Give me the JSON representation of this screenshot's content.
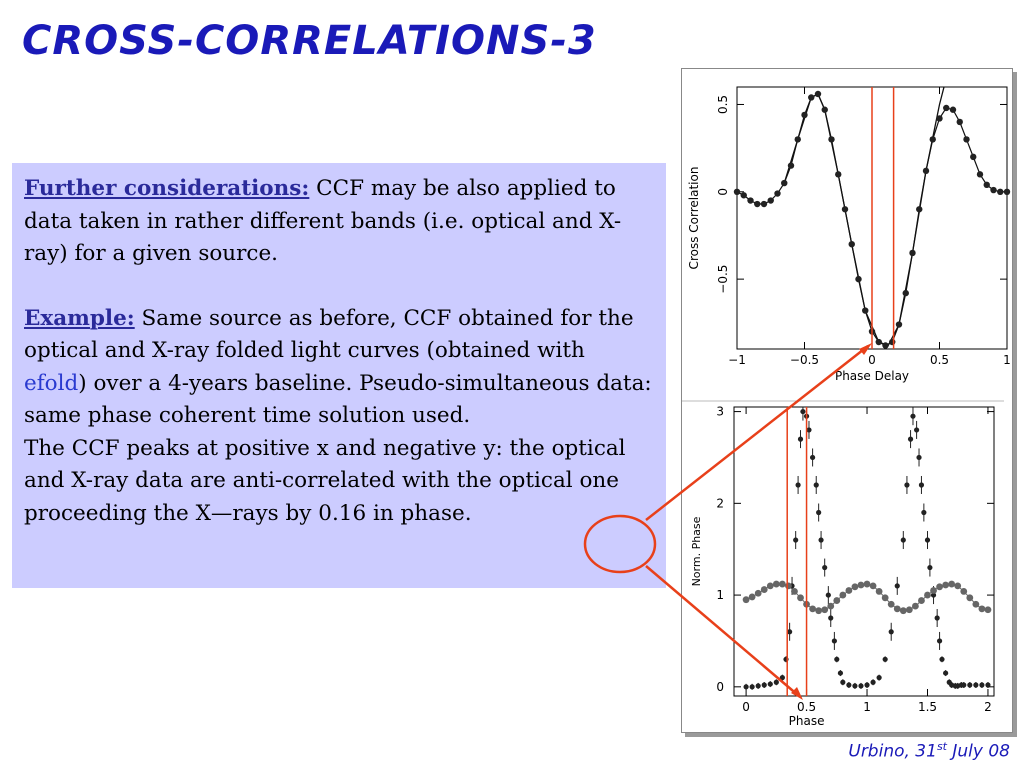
{
  "slide": {
    "title": "CROSS-CORRELATIONS-3",
    "footer": {
      "place": "Urbino, 31",
      "sup": "st",
      "date": " July 08"
    }
  },
  "textbox": {
    "p1_heading": "Further considerations:",
    "p1_text": " CCF may be also applied to data taken in rather different bands (i.e. optical and X-ray) for a given source.",
    "p2_heading": "Example:",
    "p2_text_a": " Same source as before, CCF obtained for the optical and X-ray folded light curves (obtained with ",
    "p2_keyword": "efold",
    "p2_text_b": ") over a 4-years baseline. Pseudo-simultaneous data: same phase coherent time solution used.",
    "p3_text": "The CCF peaks at positive x and negative y: the optical and X-ray data are anti-correlated with the optical one proceeding  the X—rays by 0.16 in phase."
  },
  "colors": {
    "title": "#1a1ab8",
    "box_bg": "#ccccff",
    "accent_red": "#e8401a",
    "marker": "#222222",
    "marker_grey": "#666666"
  },
  "chart_data": [
    {
      "type": "line",
      "xlabel": "Phase Delay",
      "ylabel": "Cross Correlation",
      "xlim": [
        -1,
        1
      ],
      "ylim": [
        -0.9,
        0.6
      ],
      "xticks": [
        "−1",
        "−0.5",
        "0",
        "0.5",
        "1"
      ],
      "yticks": [
        "−0.5",
        "0",
        "0.5"
      ],
      "markers": {
        "x": [
          -1.0,
          -0.95,
          -0.9,
          -0.85,
          -0.8,
          -0.75,
          -0.7,
          -0.65,
          -0.6,
          -0.55,
          -0.5,
          -0.45,
          -0.4,
          -0.35,
          -0.3,
          -0.25,
          -0.2,
          -0.15,
          -0.1,
          -0.05,
          0.0,
          0.05,
          0.1,
          0.15,
          0.2,
          0.25,
          0.3,
          0.35,
          0.4,
          0.45,
          0.5,
          0.55,
          0.6,
          0.65,
          0.7,
          0.75,
          0.8,
          0.85,
          0.9,
          0.95,
          1.0
        ],
        "y": [
          0.0,
          -0.02,
          -0.05,
          -0.07,
          -0.07,
          -0.05,
          -0.01,
          0.05,
          0.15,
          0.3,
          0.44,
          0.54,
          0.56,
          0.47,
          0.3,
          0.1,
          -0.1,
          -0.3,
          -0.5,
          -0.68,
          -0.8,
          -0.86,
          -0.88,
          -0.86,
          -0.76,
          -0.58,
          -0.35,
          -0.1,
          0.12,
          0.3,
          0.42,
          0.48,
          0.47,
          0.4,
          0.3,
          0.2,
          0.1,
          0.04,
          0.01,
          0.0,
          0.0
        ]
      },
      "fit": {
        "x": [
          -0.65,
          -0.55,
          -0.45,
          -0.4,
          -0.35,
          -0.25,
          -0.15,
          -0.05,
          0.05,
          0.12,
          0.2,
          0.3,
          0.4,
          0.5,
          0.6
        ],
        "y": [
          0.05,
          0.3,
          0.54,
          0.56,
          0.47,
          0.1,
          -0.3,
          -0.68,
          -0.86,
          -0.88,
          -0.76,
          -0.35,
          0.12,
          0.5,
          0.8
        ]
      },
      "vertical_lines_x": [
        0.0,
        0.16
      ]
    },
    {
      "type": "scatter",
      "xlabel": "Phase",
      "ylabel": "Norm.  Phase",
      "xlim": [
        -0.1,
        2.05
      ],
      "ylim": [
        -0.1,
        3.05
      ],
      "xticks": [
        "0",
        "0.5",
        "1",
        "1.5",
        "2"
      ],
      "yticks": [
        "0",
        "1",
        "2",
        "3"
      ],
      "series": [
        {
          "x": [
            0.0,
            0.05,
            0.1,
            0.15,
            0.2,
            0.25,
            0.3,
            0.33,
            0.36,
            0.38,
            0.41,
            0.43,
            0.45,
            0.47,
            0.5,
            0.52,
            0.55,
            0.58,
            0.6,
            0.62,
            0.65,
            0.68,
            0.7,
            0.73,
            0.75,
            0.78,
            0.8,
            0.85,
            0.9,
            0.95,
            1.0,
            1.05,
            1.1,
            1.15,
            1.2,
            1.25,
            1.3,
            1.33,
            1.36,
            1.38,
            1.41,
            1.43,
            1.45,
            1.47,
            1.5,
            1.52,
            1.55,
            1.58,
            1.6,
            1.62,
            1.65,
            1.68,
            1.7,
            1.73,
            1.75,
            1.78,
            1.8,
            1.85,
            1.9,
            1.95,
            2.0
          ],
          "y": [
            0.0,
            0.0,
            0.01,
            0.02,
            0.03,
            0.05,
            0.1,
            0.3,
            0.6,
            1.1,
            1.6,
            2.2,
            2.7,
            3.0,
            2.95,
            2.8,
            2.5,
            2.2,
            1.9,
            1.6,
            1.3,
            1.0,
            0.75,
            0.5,
            0.3,
            0.15,
            0.05,
            0.02,
            0.01,
            0.01,
            0.02,
            0.05,
            0.1,
            0.3,
            0.6,
            1.1,
            1.6,
            2.2,
            2.7,
            2.95,
            2.8,
            2.5,
            2.2,
            1.9,
            1.6,
            1.3,
            1.0,
            0.75,
            0.5,
            0.3,
            0.15,
            0.05,
            0.02,
            0.01,
            0.01,
            0.02,
            0.02,
            0.02,
            0.02,
            0.02,
            0.02
          ]
        },
        {
          "x": [
            0.0,
            0.05,
            0.1,
            0.15,
            0.2,
            0.25,
            0.3,
            0.35,
            0.4,
            0.45,
            0.5,
            0.55,
            0.6,
            0.65,
            0.7,
            0.75,
            0.8,
            0.85,
            0.9,
            0.95,
            1.0,
            1.05,
            1.1,
            1.15,
            1.2,
            1.25,
            1.3,
            1.35,
            1.4,
            1.45,
            1.5,
            1.55,
            1.6,
            1.65,
            1.7,
            1.75,
            1.8,
            1.85,
            1.9,
            1.95,
            2.0
          ],
          "y": [
            0.95,
            0.98,
            1.02,
            1.06,
            1.1,
            1.12,
            1.12,
            1.1,
            1.04,
            0.97,
            0.9,
            0.85,
            0.83,
            0.84,
            0.88,
            0.94,
            1.0,
            1.05,
            1.09,
            1.11,
            1.12,
            1.1,
            1.04,
            0.97,
            0.9,
            0.85,
            0.83,
            0.84,
            0.88,
            0.94,
            1.0,
            1.05,
            1.09,
            1.11,
            1.12,
            1.1,
            1.04,
            0.97,
            0.9,
            0.85,
            0.84
          ]
        }
      ],
      "vertical_lines_x": [
        0.34,
        0.5
      ]
    }
  ]
}
